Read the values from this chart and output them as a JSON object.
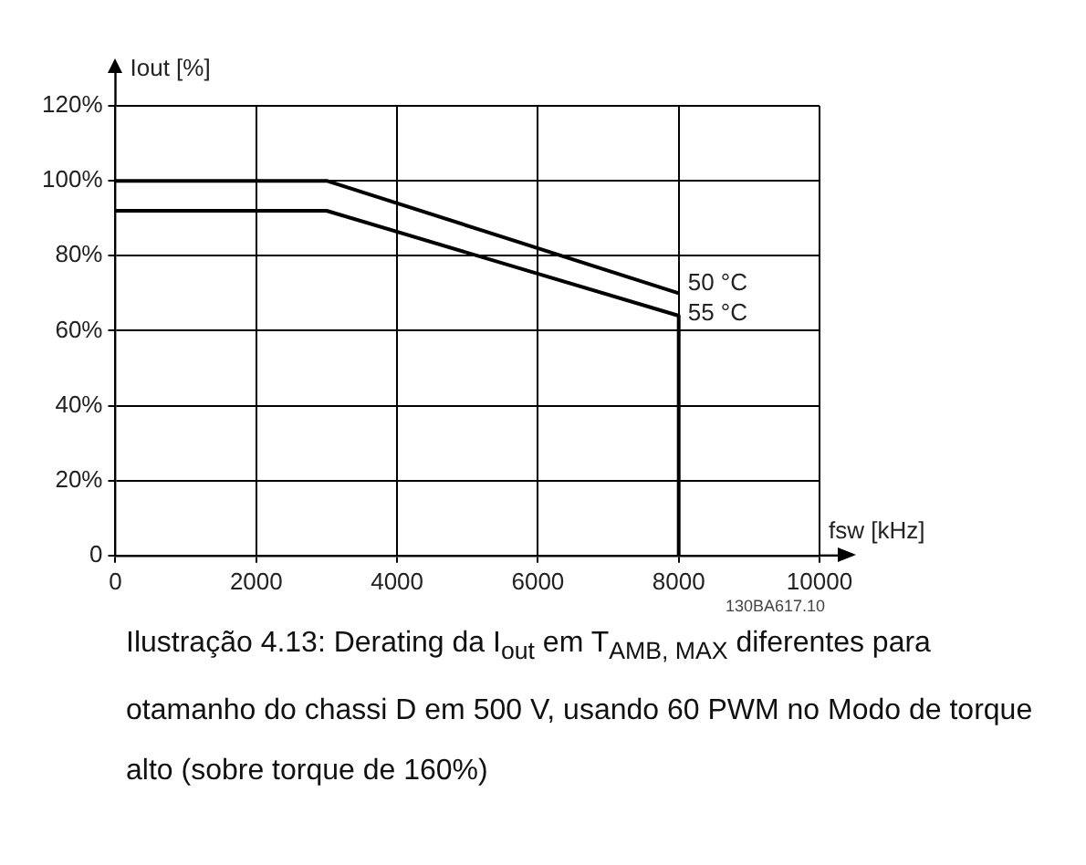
{
  "chart_data": {
    "type": "line",
    "ylabel": "Iout [%]",
    "xlabel": "fsw [kHz]",
    "xlim": [
      0,
      10000
    ],
    "xticks": [
      0,
      2000,
      4000,
      6000,
      8000,
      10000
    ],
    "ylim": [
      0,
      120
    ],
    "yticks": [
      {
        "value": 0,
        "label": "0"
      },
      {
        "value": 20,
        "label": "20%"
      },
      {
        "value": 40,
        "label": "40%"
      },
      {
        "value": 60,
        "label": "60%"
      },
      {
        "value": 80,
        "label": "80%"
      },
      {
        "value": 100,
        "label": "100%"
      },
      {
        "value": 120,
        "label": "120%"
      }
    ],
    "series": [
      {
        "name": "50 °C",
        "color": "#000000",
        "x": [
          0,
          3000,
          8000
        ],
        "values": [
          100,
          100,
          70
        ]
      },
      {
        "name": "55 °C",
        "color": "#000000",
        "x": [
          0,
          3000,
          8000,
          8000
        ],
        "values": [
          92,
          92,
          64,
          0
        ]
      }
    ],
    "grid": true,
    "legend": false,
    "marker": "none",
    "line_style": "solid",
    "annotations": [
      "130BA617.10",
      "Ilustração 4.13: Derating da I$_{out}$ em T$_{AMB, MAX}$ diferentes para otamanho do chassi D em 500 V, usando 60 PWM no Modo de torque alto (sobre torque de 160%)"
    ]
  }
}
